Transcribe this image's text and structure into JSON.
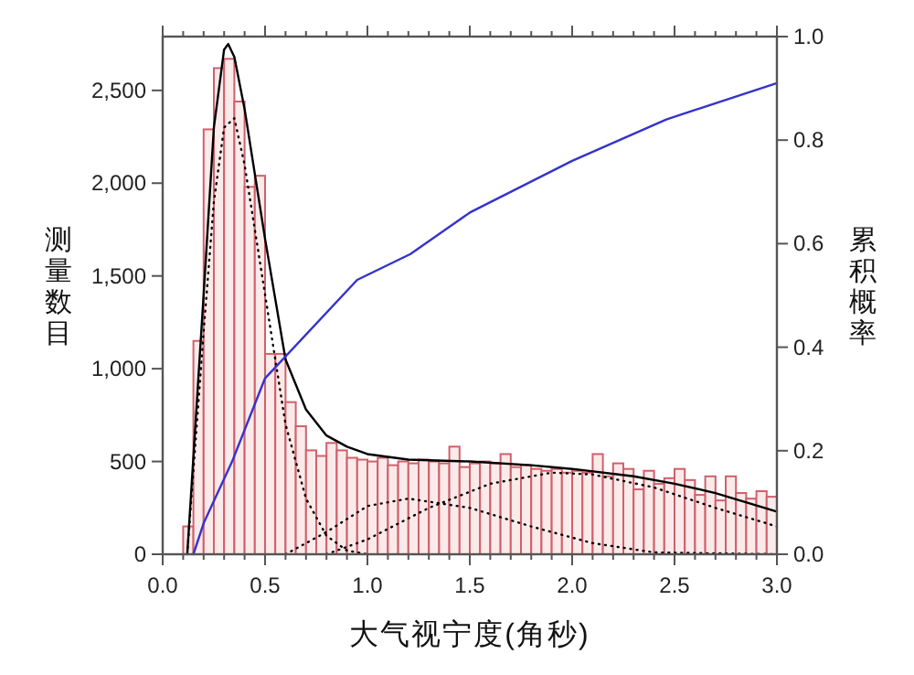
{
  "chart_data": {
    "type": "histogram",
    "xlabel": "大气视宁度(角秒)",
    "ylabel": "测量数目",
    "y2label": "累积概率",
    "xlim": [
      0,
      3
    ],
    "xticks": [
      {
        "value": 0,
        "label": "0.0"
      },
      {
        "value": 0.1,
        "label": null
      },
      {
        "value": 0.2,
        "label": null
      },
      {
        "value": 0.3,
        "label": null
      },
      {
        "value": 0.4,
        "label": null
      },
      {
        "value": 0.5,
        "label": "0.5"
      },
      {
        "value": 0.6,
        "label": null
      },
      {
        "value": 0.7,
        "label": null
      },
      {
        "value": 0.8,
        "label": null
      },
      {
        "value": 0.9,
        "label": null
      },
      {
        "value": 1,
        "label": "1.0"
      },
      {
        "value": 1.1,
        "label": null
      },
      {
        "value": 1.2,
        "label": null
      },
      {
        "value": 1.3,
        "label": null
      },
      {
        "value": 1.4,
        "label": null
      },
      {
        "value": 1.5,
        "label": "1.5"
      },
      {
        "value": 1.6,
        "label": null
      },
      {
        "value": 1.7,
        "label": null
      },
      {
        "value": 1.8,
        "label": null
      },
      {
        "value": 1.9,
        "label": null
      },
      {
        "value": 2,
        "label": "2.0"
      },
      {
        "value": 2.1,
        "label": null
      },
      {
        "value": 2.2,
        "label": null
      },
      {
        "value": 2.3,
        "label": null
      },
      {
        "value": 2.4,
        "label": null
      },
      {
        "value": 2.5,
        "label": "2.5"
      },
      {
        "value": 2.6,
        "label": null
      },
      {
        "value": 2.7,
        "label": null
      },
      {
        "value": 2.8,
        "label": null
      },
      {
        "value": 2.9,
        "label": null
      },
      {
        "value": 3,
        "label": "3.0"
      }
    ],
    "ylim": [
      0,
      2790
    ],
    "yticks": [
      0,
      500,
      {
        "value": 1000,
        "label": "1,000"
      },
      {
        "value": 1500,
        "label": "1,500"
      },
      {
        "value": 2000,
        "label": "2,000"
      },
      {
        "value": 2500,
        "label": "2,500"
      }
    ],
    "y2lim": [
      0,
      1
    ],
    "y2ticks": [
      {
        "value": 0,
        "label": "0.0"
      },
      {
        "value": 0.2,
        "label": "0.2"
      },
      {
        "value": 0.4,
        "label": "0.4"
      },
      {
        "value": 0.6,
        "label": "0.6"
      },
      {
        "value": 0.8,
        "label": "0.8"
      },
      {
        "value": 1,
        "label": "1.0"
      }
    ],
    "series": [
      {
        "type": "histogram",
        "color": "#d0606a",
        "bins": [
          0.1,
          0.15,
          0.2,
          0.25,
          0.3,
          0.35,
          0.4,
          0.45,
          0.5,
          0.55,
          0.6,
          0.65,
          0.7,
          0.75,
          0.8,
          0.85,
          0.9,
          0.95,
          1.0,
          1.05,
          1.1,
          1.15,
          1.2,
          1.25,
          1.3,
          1.35,
          1.4,
          1.45,
          1.5,
          1.55,
          1.6,
          1.65,
          1.7,
          1.75,
          1.8,
          1.85,
          1.9,
          1.95,
          2.0,
          2.05,
          2.1,
          2.15,
          2.2,
          2.25,
          2.3,
          2.35,
          2.4,
          2.45,
          2.5,
          2.55,
          2.6,
          2.65,
          2.7,
          2.75,
          2.8,
          2.85,
          2.9,
          2.95,
          3.0
        ],
        "values": [
          150,
          1150,
          2290,
          2620,
          2670,
          2440,
          1980,
          2040,
          1080,
          1080,
          820,
          690,
          560,
          530,
          600,
          560,
          520,
          510,
          500,
          520,
          480,
          500,
          490,
          510,
          500,
          490,
          580,
          470,
          490,
          500,
          490,
          540,
          470,
          480,
          460,
          450,
          460,
          440,
          450,
          440,
          540,
          420,
          490,
          460,
          350,
          450,
          380,
          410,
          460,
          400,
          320,
          420,
          290,
          420,
          330,
          300,
          340,
          310
        ]
      },
      {
        "type": "line",
        "color": "#000000",
        "line_style": "solid",
        "x": [
          0.12,
          0.2,
          0.25,
          0.3,
          0.32,
          0.35,
          0.4,
          0.5,
          0.6,
          0.7,
          0.8,
          0.9,
          1.0,
          1.2,
          1.5,
          1.8,
          2.0,
          2.3,
          2.5,
          2.7,
          3.0
        ],
        "values": [
          0,
          1400,
          2300,
          2720,
          2750,
          2680,
          2400,
          1700,
          1050,
          780,
          640,
          580,
          540,
          510,
          500,
          480,
          460,
          420,
          380,
          330,
          230
        ]
      },
      {
        "type": "line",
        "color": "#000000",
        "line_style": "dotted",
        "x": [
          0.12,
          0.2,
          0.25,
          0.3,
          0.35,
          0.4,
          0.5,
          0.6,
          0.7,
          0.8,
          0.9,
          1.0
        ],
        "values": [
          0,
          1200,
          1900,
          2300,
          2350,
          2100,
          1400,
          700,
          300,
          100,
          20,
          0
        ]
      },
      {
        "type": "line",
        "color": "#000000",
        "line_style": "dotted",
        "x": [
          0.6,
          0.8,
          1.0,
          1.2,
          1.5,
          1.8,
          2.1,
          2.4,
          3.0
        ],
        "values": [
          0,
          120,
          260,
          300,
          250,
          150,
          60,
          10,
          0
        ]
      },
      {
        "type": "line",
        "color": "#000000",
        "line_style": "dotted",
        "x": [
          0.8,
          1.0,
          1.3,
          1.6,
          1.9,
          2.1,
          2.4,
          2.7,
          3.0
        ],
        "values": [
          0,
          80,
          250,
          380,
          440,
          430,
          360,
          250,
          150
        ]
      },
      {
        "type": "line",
        "color": "#3333cc",
        "line_style": "solid",
        "axis": "y2",
        "x": [
          0.15,
          0.2,
          0.34,
          0.5,
          0.95,
          1.21,
          1.5,
          2.0,
          2.46,
          3.0
        ],
        "values": [
          0,
          0.06,
          0.18,
          0.34,
          0.53,
          0.58,
          0.66,
          0.76,
          0.84,
          0.91
        ]
      }
    ]
  }
}
